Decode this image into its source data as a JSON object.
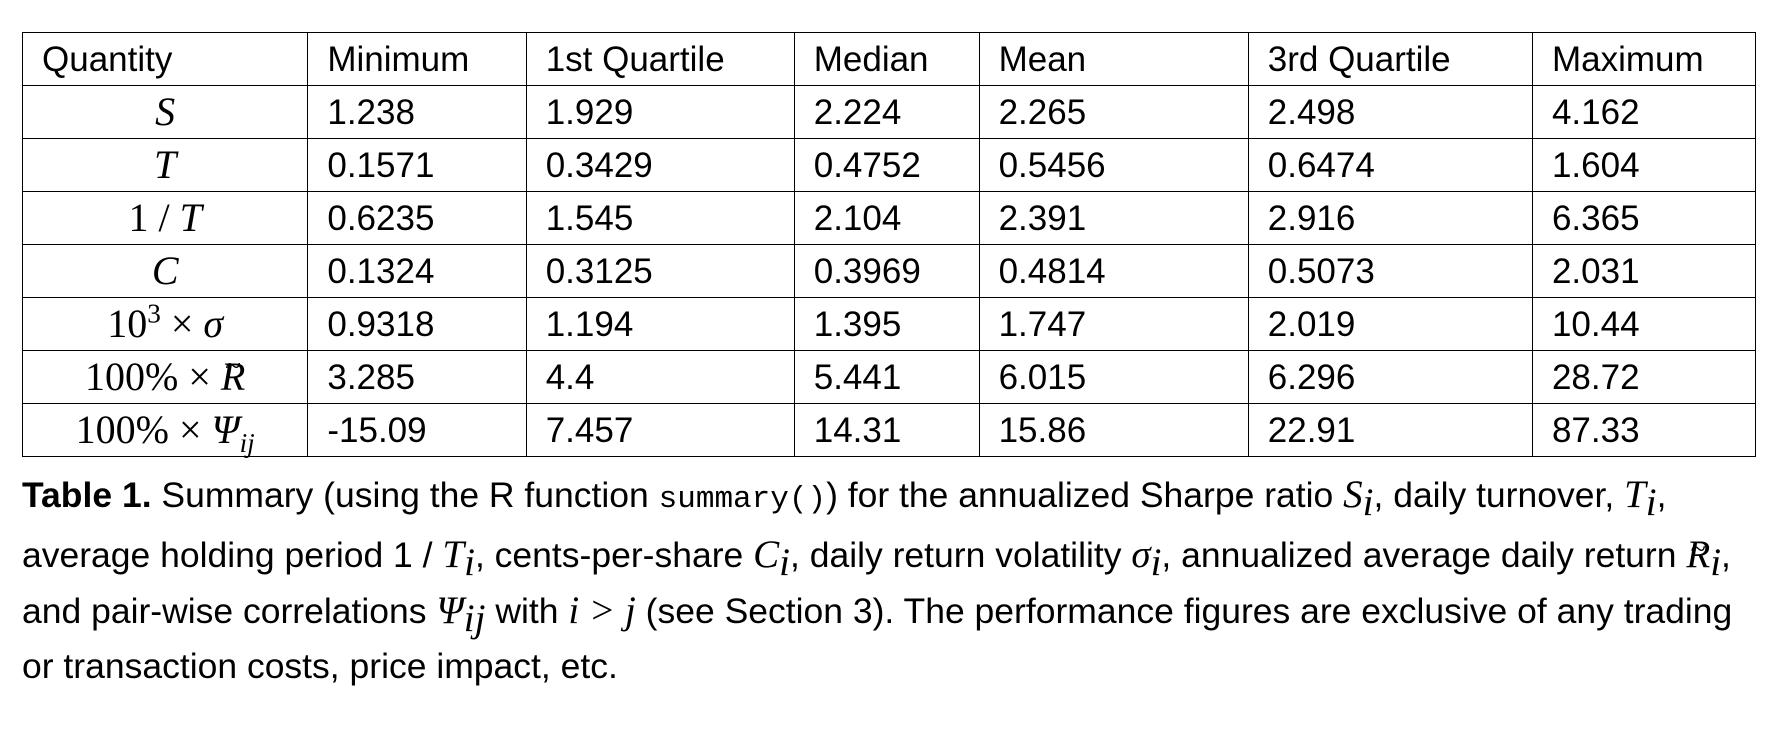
{
  "table": {
    "headers": [
      "Quantity",
      "Minimum",
      "1st Quartile",
      "Median",
      "Mean",
      "3rd Quartile",
      "Maximum"
    ],
    "rows": [
      {
        "quantity": "S",
        "values": [
          "1.238",
          "1.929",
          "2.224",
          "2.265",
          "2.498",
          "4.162"
        ]
      },
      {
        "quantity": "T",
        "values": [
          "0.1571",
          "0.3429",
          "0.4752",
          "0.5456",
          "0.6474",
          "1.604"
        ]
      },
      {
        "quantity": "1 / T",
        "values": [
          "0.6235",
          "1.545",
          "2.104",
          "2.391",
          "2.916",
          "6.365"
        ]
      },
      {
        "quantity": "C",
        "values": [
          "0.1324",
          "0.3125",
          "0.3969",
          "0.4814",
          "0.5073",
          "2.031"
        ]
      },
      {
        "quantity": "10³ × σ",
        "values": [
          "0.9318",
          "1.194",
          "1.395",
          "1.747",
          "2.019",
          "10.44"
        ]
      },
      {
        "quantity": "100% × R̃",
        "values": [
          "3.285",
          "4.4",
          "5.441",
          "6.015",
          "6.296",
          "28.72"
        ]
      },
      {
        "quantity": "100% × Ψij",
        "values": [
          "-15.09",
          "7.457",
          "14.31",
          "15.86",
          "22.91",
          "87.33"
        ]
      }
    ]
  },
  "caption": {
    "label": "Table 1.",
    "t1": " Summary (using the R function ",
    "code": "summary()",
    "t2": ") for the annualized Sharpe ratio ",
    "t3": ", daily turnover, ",
    "t4": ", average holding period 1 / ",
    "t5": ", cents-per-share ",
    "t6": ", daily return volatility ",
    "t7": ", annualized average daily return ",
    "t8": ", and pair-wise correlations ",
    "t9": " with ",
    "t10": " (see Section 3). The performance figures are exclusive of any trading or transaction costs, price impact, etc."
  },
  "math": {
    "S": "S",
    "T": "T",
    "C": "C",
    "sigma": "σ",
    "R": "R",
    "tilde": "~",
    "Psi": "Ψ",
    "i": "i",
    "ij": "ij",
    "cond": "i > j",
    "one_over": "1 / ",
    "ten": "10",
    "cube": "3",
    "times": " × ",
    "hundred": "100%"
  }
}
